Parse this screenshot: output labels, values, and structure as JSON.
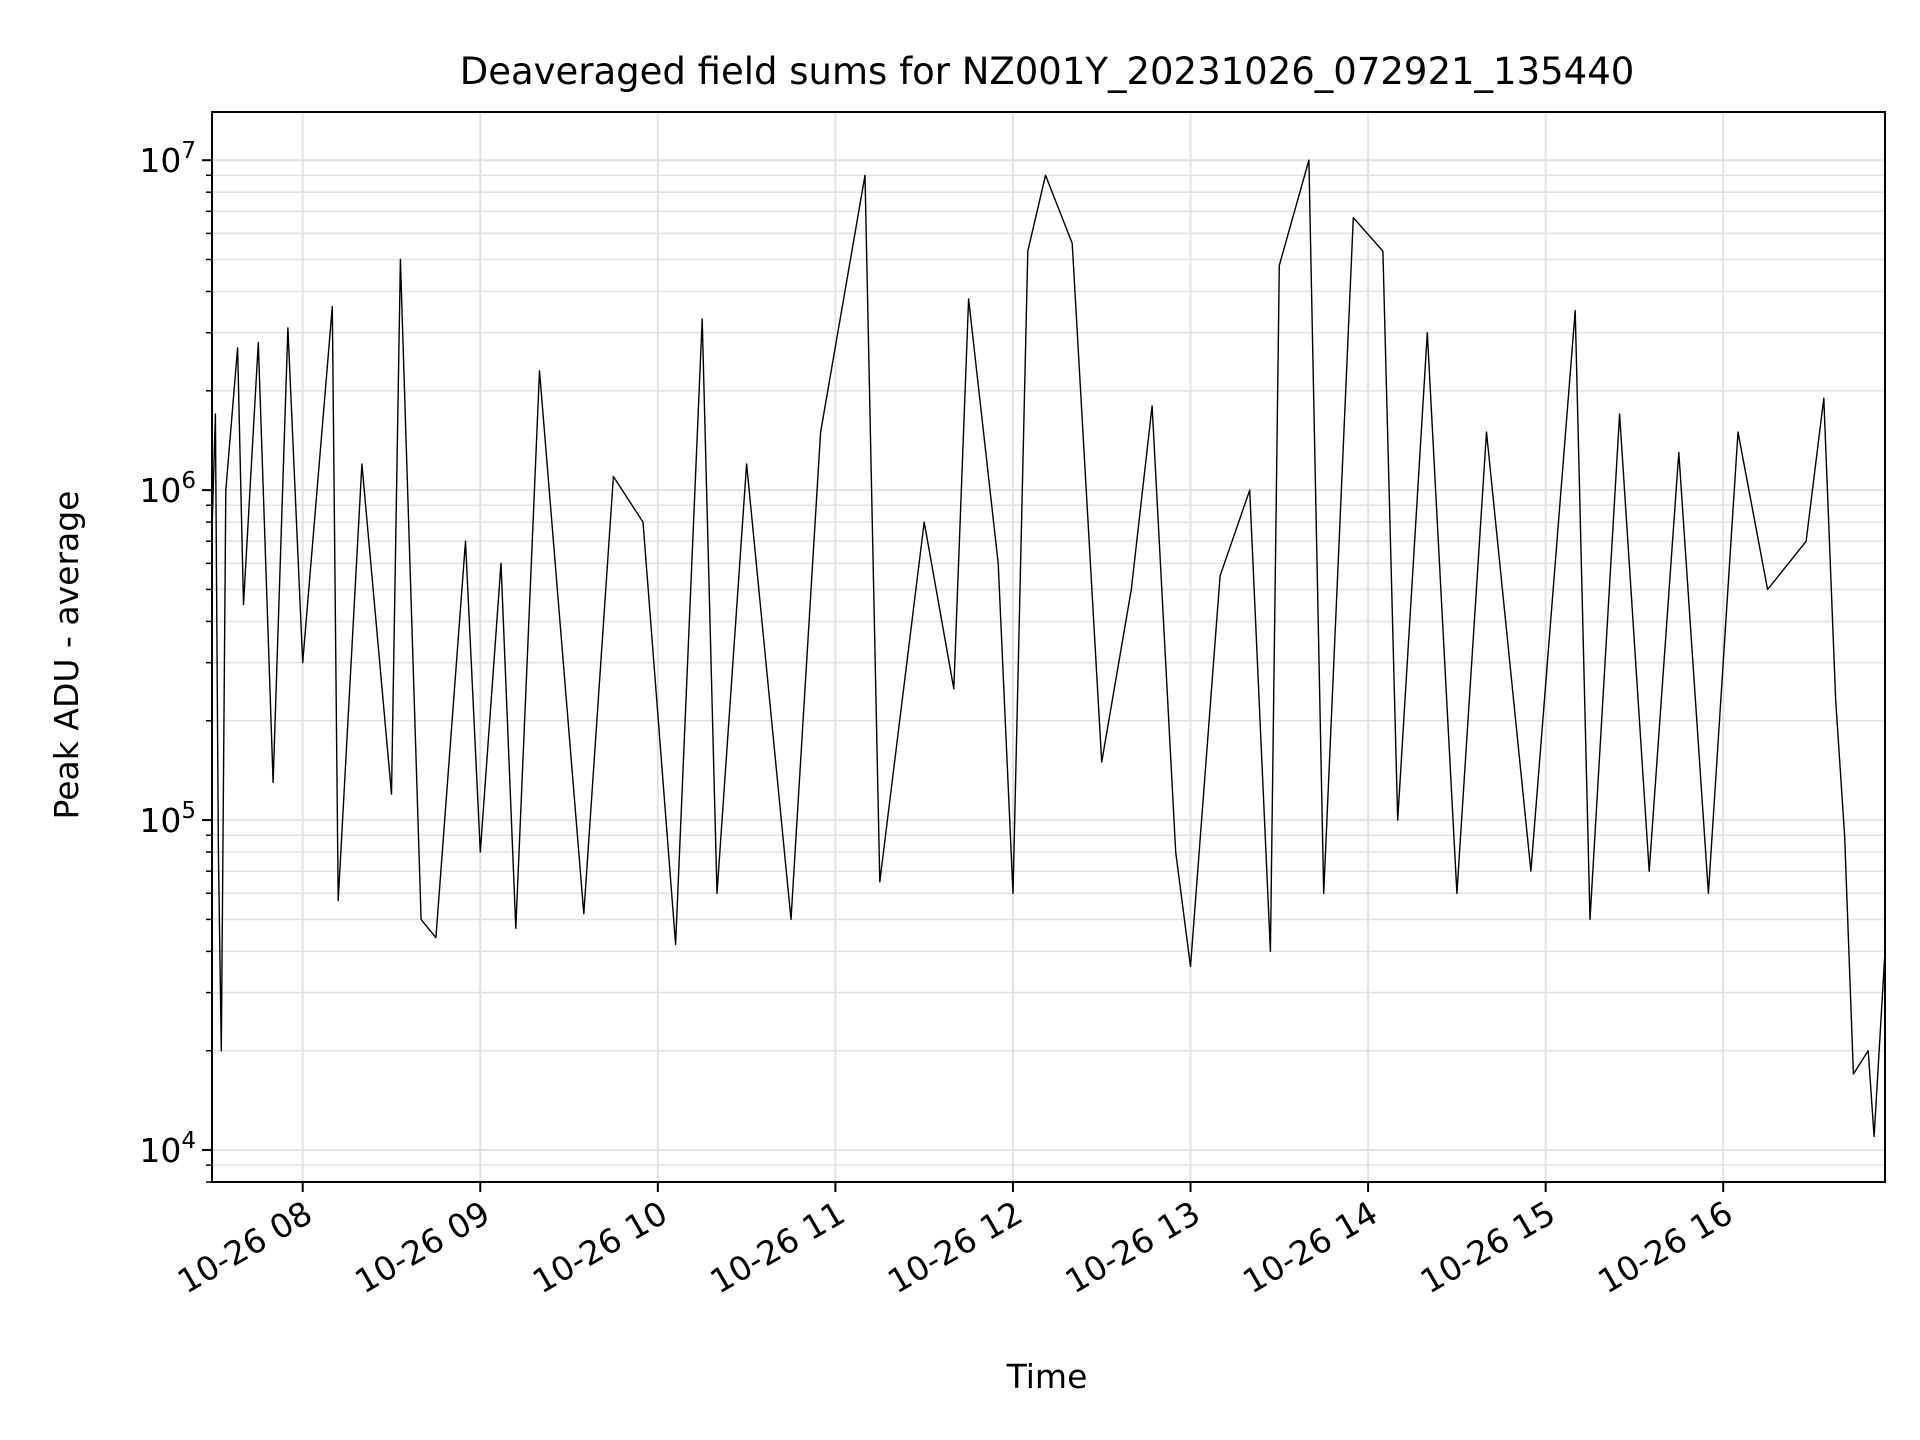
{
  "chart_data": {
    "type": "line",
    "title": "Deaveraged field sums for NZ001Y_20231026_072921_135440",
    "xlabel": "Time",
    "ylabel": "Peak ADU - average",
    "yscale": "log",
    "xlim": [
      "2023-10-26T07:29:21",
      "2023-10-26T16:54:40"
    ],
    "ylim": [
      8000,
      14000000
    ],
    "grid": "both (major and minor)",
    "x_tick_labels": [
      "10-26 08",
      "10-26 09",
      "10-26 10",
      "10-26 11",
      "10-26 12",
      "10-26 13",
      "10-26 14",
      "10-26 15",
      "10-26 16"
    ],
    "y_tick_labels": [
      {
        "base": "10",
        "exp": "4"
      },
      {
        "base": "10",
        "exp": "5"
      },
      {
        "base": "10",
        "exp": "6"
      },
      {
        "base": "10",
        "exp": "7"
      }
    ],
    "line_color": "#000000",
    "series": [
      {
        "values": [
          [
            "2023-10-26T07:29:21",
            750000
          ],
          [
            "2023-10-26T07:30:30",
            1700000
          ],
          [
            "2023-10-26T07:31:30",
            80000
          ],
          [
            "2023-10-26T07:32:30",
            20000
          ],
          [
            "2023-10-26T07:34:00",
            1000000
          ],
          [
            "2023-10-26T07:38:00",
            2700000
          ],
          [
            "2023-10-26T07:40:00",
            450000
          ],
          [
            "2023-10-26T07:45:00",
            2800000
          ],
          [
            "2023-10-26T07:50:00",
            130000
          ],
          [
            "2023-10-26T07:55:00",
            3100000
          ],
          [
            "2023-10-26T08:00:00",
            300000
          ],
          [
            "2023-10-26T08:10:00",
            3600000
          ],
          [
            "2023-10-26T08:12:00",
            57000
          ],
          [
            "2023-10-26T08:20:00",
            1200000
          ],
          [
            "2023-10-26T08:30:00",
            120000
          ],
          [
            "2023-10-26T08:33:00",
            5000000
          ],
          [
            "2023-10-26T08:40:00",
            50000
          ],
          [
            "2023-10-26T08:45:00",
            44000
          ],
          [
            "2023-10-26T08:55:00",
            700000
          ],
          [
            "2023-10-26T09:00:00",
            80000
          ],
          [
            "2023-10-26T09:07:00",
            600000
          ],
          [
            "2023-10-26T09:12:00",
            47000
          ],
          [
            "2023-10-26T09:20:00",
            2300000
          ],
          [
            "2023-10-26T09:35:00",
            52000
          ],
          [
            "2023-10-26T09:45:00",
            1100000
          ],
          [
            "2023-10-26T09:55:00",
            800000
          ],
          [
            "2023-10-26T10:06:00",
            42000
          ],
          [
            "2023-10-26T10:15:00",
            3300000
          ],
          [
            "2023-10-26T10:20:00",
            60000
          ],
          [
            "2023-10-26T10:30:00",
            1200000
          ],
          [
            "2023-10-26T10:45:00",
            50000
          ],
          [
            "2023-10-26T10:55:00",
            1500000
          ],
          [
            "2023-10-26T11:10:00",
            9000000
          ],
          [
            "2023-10-26T11:15:00",
            65000
          ],
          [
            "2023-10-26T11:30:00",
            800000
          ],
          [
            "2023-10-26T11:40:00",
            250000
          ],
          [
            "2023-10-26T11:45:00",
            3800000
          ],
          [
            "2023-10-26T11:55:00",
            600000
          ],
          [
            "2023-10-26T12:00:00",
            60000
          ],
          [
            "2023-10-26T12:05:00",
            5300000
          ],
          [
            "2023-10-26T12:11:00",
            9000000
          ],
          [
            "2023-10-26T12:20:00",
            5600000
          ],
          [
            "2023-10-26T12:30:00",
            150000
          ],
          [
            "2023-10-26T12:40:00",
            500000
          ],
          [
            "2023-10-26T12:47:00",
            1800000
          ],
          [
            "2023-10-26T12:55:00",
            80000
          ],
          [
            "2023-10-26T13:00:00",
            36000
          ],
          [
            "2023-10-26T13:10:00",
            550000
          ],
          [
            "2023-10-26T13:20:00",
            1000000
          ],
          [
            "2023-10-26T13:27:00",
            40000
          ],
          [
            "2023-10-26T13:30:00",
            4800000
          ],
          [
            "2023-10-26T13:40:00",
            10000000
          ],
          [
            "2023-10-26T13:45:00",
            60000
          ],
          [
            "2023-10-26T13:55:00",
            6700000
          ],
          [
            "2023-10-26T14:05:00",
            5300000
          ],
          [
            "2023-10-26T14:10:00",
            100000
          ],
          [
            "2023-10-26T14:20:00",
            3000000
          ],
          [
            "2023-10-26T14:30:00",
            60000
          ],
          [
            "2023-10-26T14:40:00",
            1500000
          ],
          [
            "2023-10-26T14:55:00",
            70000
          ],
          [
            "2023-10-26T15:10:00",
            3500000
          ],
          [
            "2023-10-26T15:15:00",
            50000
          ],
          [
            "2023-10-26T15:25:00",
            1700000
          ],
          [
            "2023-10-26T15:35:00",
            70000
          ],
          [
            "2023-10-26T15:45:00",
            1300000
          ],
          [
            "2023-10-26T15:55:00",
            60000
          ],
          [
            "2023-10-26T16:05:00",
            1500000
          ],
          [
            "2023-10-26T16:15:00",
            500000
          ],
          [
            "2023-10-26T16:28:00",
            700000
          ],
          [
            "2023-10-26T16:34:00",
            1900000
          ],
          [
            "2023-10-26T16:38:00",
            230000
          ],
          [
            "2023-10-26T16:41:00",
            90000
          ],
          [
            "2023-10-26T16:44:00",
            17000
          ],
          [
            "2023-10-26T16:49:00",
            20000
          ],
          [
            "2023-10-26T16:51:00",
            11000
          ],
          [
            "2023-10-26T16:54:40",
            40000
          ]
        ]
      }
    ]
  }
}
